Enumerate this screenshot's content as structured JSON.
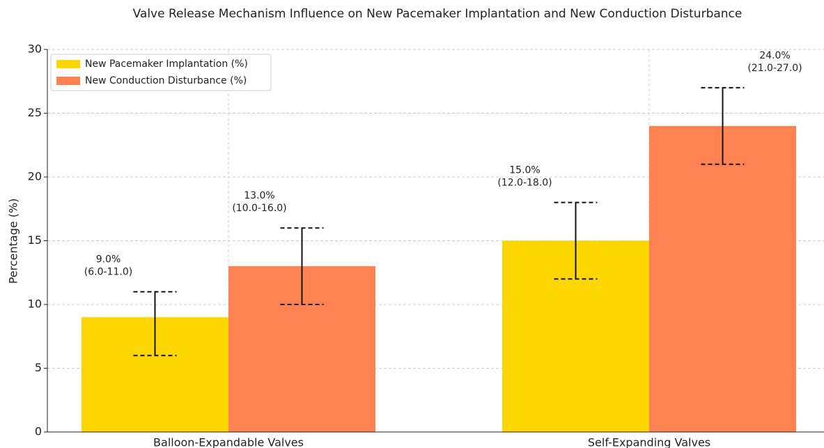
{
  "chart_data": {
    "type": "bar",
    "title": "Valve Release Mechanism Influence on New Pacemaker Implantation and New Conduction Disturbance",
    "ylabel": "Percentage (%)",
    "categories": [
      "Balloon-Expandable Valves",
      "Self-Expanding Valves"
    ],
    "series": [
      {
        "name": "New Pacemaker Implantation (%)",
        "color": "#ffd700",
        "values": [
          9,
          15
        ],
        "ci_low": [
          6,
          12
        ],
        "ci_high": [
          11,
          18
        ],
        "value_labels": [
          "9.0%",
          "15.0%"
        ],
        "ci_labels": [
          "(6.0-11.0)",
          "(12.0-18.0)"
        ]
      },
      {
        "name": "New Conduction Disturbance (%)",
        "color": "#ff8352",
        "values": [
          13,
          24
        ],
        "ci_low": [
          10,
          21
        ],
        "ci_high": [
          16,
          27
        ],
        "value_labels": [
          "13.0%",
          "24.0%"
        ],
        "ci_labels": [
          "(10.0-16.0)",
          "(21.0-27.0)"
        ]
      }
    ],
    "ylim": [
      0,
      30
    ],
    "yticks": [
      0,
      5,
      10,
      15,
      20,
      25,
      30
    ],
    "grid": true,
    "legend": "upper left"
  }
}
